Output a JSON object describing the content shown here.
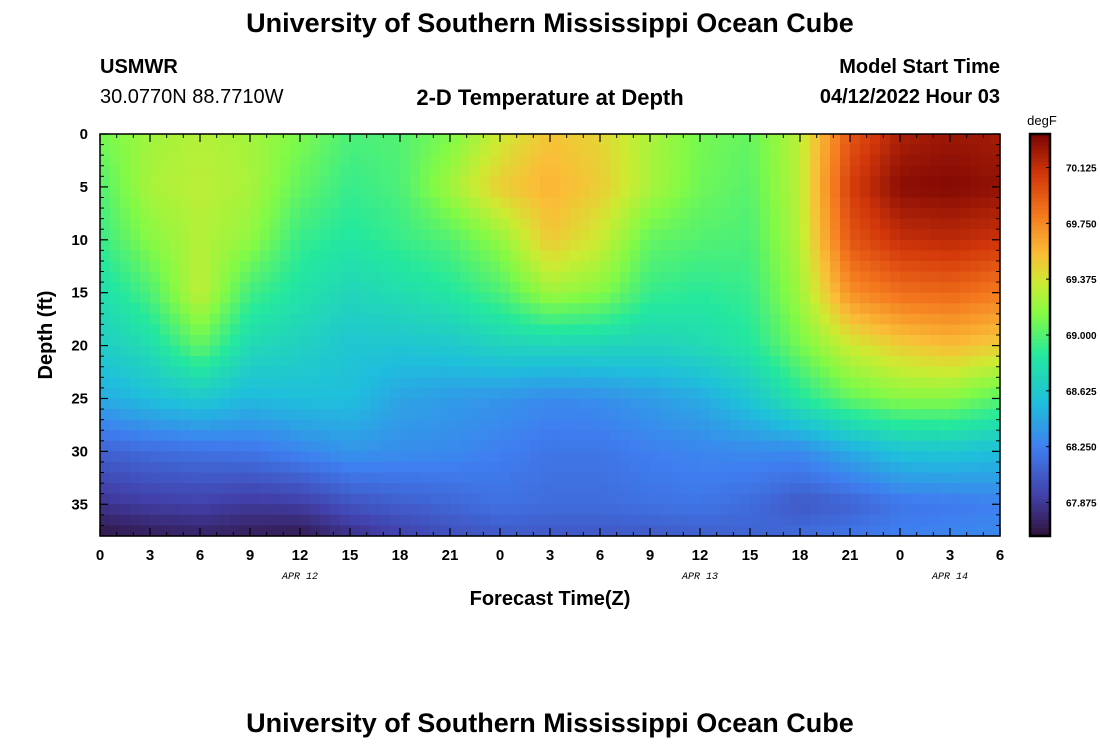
{
  "page": {
    "title": "University of Southern Mississippi Ocean Cube",
    "footer_title": "University of Southern Mississippi Ocean Cube",
    "station": "USMWR",
    "coordinates": "30.0770N  88.7710W",
    "model_label": "Model Start Time",
    "model_time": "04/12/2022 Hour 03"
  },
  "chart_data": {
    "type": "heatmap",
    "title": "2-D Temperature at Depth",
    "xlabel": "Forecast Time(Z)",
    "ylabel": "Depth (ft)",
    "units": "degF",
    "x_ticks": [
      "0",
      "3",
      "6",
      "9",
      "12",
      "15",
      "18",
      "21",
      "0",
      "3",
      "6",
      "9",
      "12",
      "15",
      "18",
      "21",
      "0",
      "3",
      "6"
    ],
    "x_hours": [
      0,
      3,
      6,
      9,
      12,
      15,
      18,
      21,
      24,
      27,
      30,
      33,
      36,
      39,
      42,
      45,
      48,
      51,
      54
    ],
    "y_ticks": [
      0,
      5,
      10,
      15,
      20,
      25,
      30,
      35
    ],
    "ylim": [
      0,
      38
    ],
    "xlim": [
      0,
      54
    ],
    "date_labels": [
      {
        "text": "APR 12",
        "hour": 12
      },
      {
        "text": "APR 13",
        "hour": 36
      },
      {
        "text": "APR 14",
        "hour": 51
      }
    ],
    "colorbar": {
      "min": 67.65,
      "max": 70.35,
      "ticks": [
        67.875,
        68.25,
        68.625,
        69.0,
        69.375,
        69.75,
        70.125
      ],
      "tick_labels": [
        "67.875",
        "68.250",
        "68.625",
        "69.000",
        "69.375",
        "69.750",
        "70.125"
      ]
    },
    "depths": [
      0,
      5,
      10,
      15,
      20,
      25,
      30,
      35,
      38
    ],
    "times": [
      0,
      3,
      6,
      9,
      12,
      15,
      18,
      21,
      24,
      27,
      30,
      33,
      36,
      39,
      42,
      45,
      48,
      51,
      54
    ],
    "temperatures": [
      [
        69.1,
        69.22,
        69.28,
        69.23,
        69.12,
        68.98,
        69.0,
        69.12,
        69.35,
        69.52,
        69.45,
        69.25,
        69.1,
        69.05,
        69.3,
        69.95,
        70.2,
        70.25,
        70.22
      ],
      [
        69.0,
        69.25,
        69.3,
        69.25,
        69.05,
        68.92,
        68.98,
        69.22,
        69.48,
        69.58,
        69.48,
        69.25,
        69.08,
        69.02,
        69.3,
        70.05,
        70.3,
        70.32,
        70.28
      ],
      [
        68.92,
        69.15,
        69.28,
        69.18,
        68.92,
        68.85,
        68.92,
        69.0,
        69.18,
        69.5,
        69.35,
        69.05,
        69.0,
        68.98,
        69.28,
        69.95,
        70.12,
        70.15,
        70.1
      ],
      [
        68.78,
        68.98,
        69.32,
        68.95,
        68.82,
        68.72,
        68.78,
        68.85,
        68.98,
        69.22,
        69.15,
        68.92,
        68.88,
        68.92,
        69.22,
        69.72,
        69.85,
        69.88,
        69.8
      ],
      [
        68.65,
        68.78,
        69.05,
        68.75,
        68.68,
        68.6,
        68.6,
        68.62,
        68.7,
        68.72,
        68.72,
        68.7,
        68.75,
        68.85,
        69.1,
        69.35,
        69.48,
        69.55,
        69.48
      ],
      [
        68.45,
        68.55,
        68.62,
        68.52,
        68.55,
        68.55,
        68.42,
        68.38,
        68.35,
        68.3,
        68.32,
        68.38,
        68.45,
        68.6,
        68.85,
        69.05,
        69.15,
        69.15,
        69.02
      ],
      [
        68.1,
        68.15,
        68.18,
        68.2,
        68.28,
        68.35,
        68.32,
        68.3,
        68.25,
        68.2,
        68.2,
        68.25,
        68.28,
        68.3,
        68.3,
        68.45,
        68.58,
        68.6,
        68.55
      ],
      [
        67.85,
        67.9,
        67.92,
        67.88,
        67.9,
        68.02,
        68.08,
        68.12,
        68.18,
        68.15,
        68.15,
        68.18,
        68.2,
        68.15,
        68.05,
        68.1,
        68.2,
        68.22,
        68.25
      ],
      [
        67.68,
        67.72,
        67.75,
        67.72,
        67.7,
        67.82,
        67.92,
        68.0,
        68.05,
        68.05,
        68.05,
        68.05,
        68.08,
        68.1,
        68.15,
        68.2,
        68.25,
        68.28,
        68.3
      ]
    ]
  }
}
